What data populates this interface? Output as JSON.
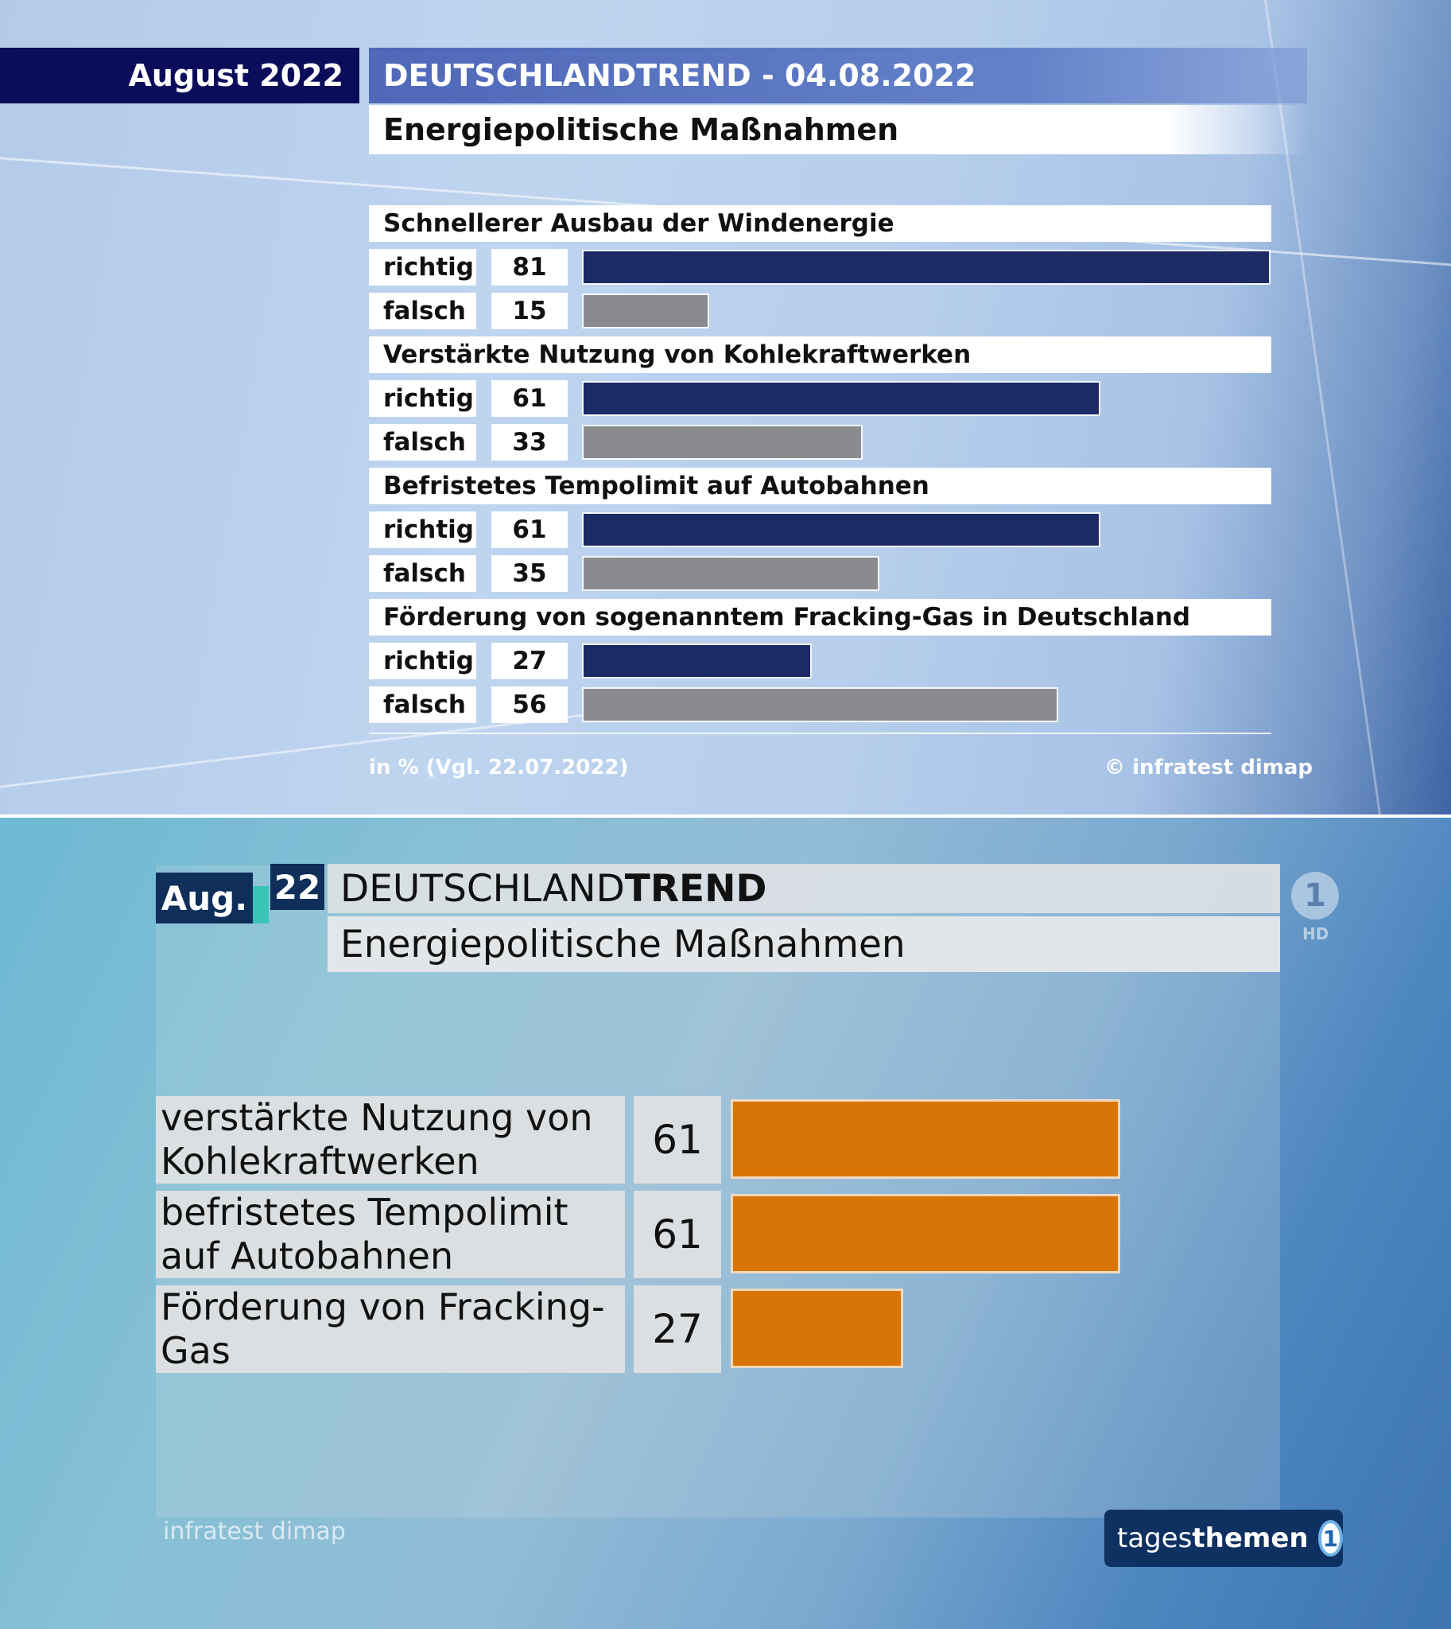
{
  "top": {
    "date": "August 2022",
    "trend": "DEUTSCHLANDTREND - 04.08.2022",
    "subtitle": "Energiepolitische Maßnahmen",
    "footnote": "in % (Vgl. 22.07.2022)",
    "source": "© infratest dimap"
  },
  "bottom": {
    "month": "Aug.",
    "year": "22",
    "trend_light": "DEUTSCHLAND",
    "trend_bold": "TREND",
    "subtitle": "Energiepolitische Maßnahmen",
    "source": "infratest dimap",
    "brand_light": "tages",
    "brand_bold": "themen",
    "logo_glyph": "1",
    "hd": "HD"
  },
  "chart_data": [
    {
      "type": "bar",
      "orientation": "horizontal",
      "unit": "%",
      "colors": {
        "richtig": "#1c2b63",
        "falsch": "#8a8b8f"
      },
      "groups": [
        {
          "question": "Schnellerer Ausbau der Windenergie",
          "answers": [
            {
              "label": "richtig",
              "value": 81
            },
            {
              "label": "falsch",
              "value": 15
            }
          ]
        },
        {
          "question": "Verstärkte Nutzung von Kohlekraftwerken",
          "answers": [
            {
              "label": "richtig",
              "value": 61
            },
            {
              "label": "falsch",
              "value": 33
            }
          ]
        },
        {
          "question": "Befristetes Tempolimit auf Autobahnen",
          "answers": [
            {
              "label": "richtig",
              "value": 61
            },
            {
              "label": "falsch",
              "value": 35
            }
          ]
        },
        {
          "question": "Förderung von sogenanntem Fracking-Gas in Deutschland",
          "answers": [
            {
              "label": "richtig",
              "value": 27
            },
            {
              "label": "falsch",
              "value": 56
            }
          ]
        }
      ]
    },
    {
      "type": "bar",
      "orientation": "horizontal",
      "unit": "%",
      "color": "#d97506",
      "categories": [
        [
          "verstärkte Nutzung von",
          "Kohlekraftwerken"
        ],
        [
          "befristetes Tempolimit",
          "auf Autobahnen"
        ],
        [
          "Förderung von Fracking-",
          "Gas"
        ]
      ],
      "values": [
        61,
        61,
        27
      ]
    }
  ]
}
